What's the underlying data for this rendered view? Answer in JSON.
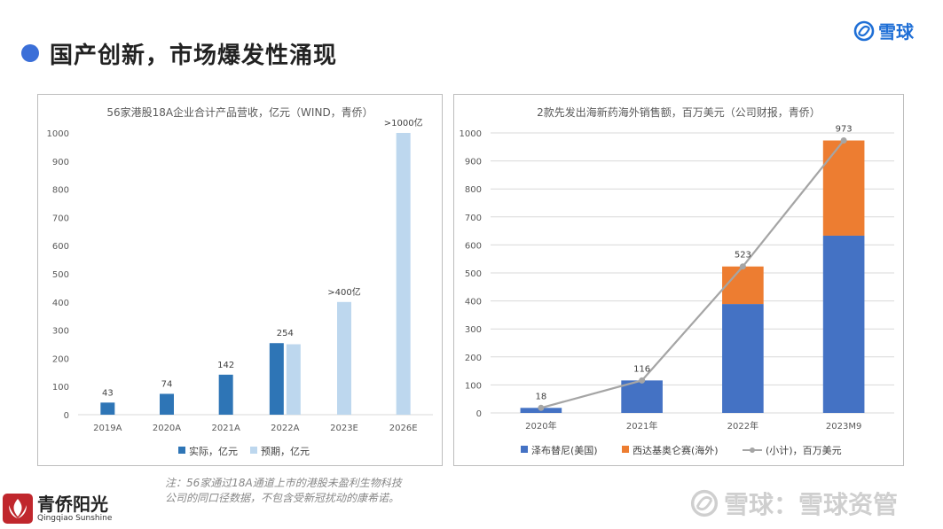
{
  "page": {
    "title": "国产创新，市场爆发性涌现",
    "brand_top": "雪球",
    "note_line1": "注：56家通过18A通道上市的港股未盈利生物科技",
    "note_line2": "公司的同口径数据，不包含受新冠扰动的康希诺。",
    "brand_bottom_cn": "青侨阳光",
    "brand_bottom_en": "Qingqiao Sunshine",
    "watermark": "雪球：雪球资管",
    "accent_color": "#3b6fd8"
  },
  "chart_data": [
    {
      "type": "bar",
      "title": "56家港股18A企业合计产品营收，亿元（WIND，青侨）",
      "categories": [
        "2019A",
        "2020A",
        "2021A",
        "2022A",
        "2023E",
        "2026E"
      ],
      "ylim": [
        0,
        1000
      ],
      "yticks": [
        0,
        100,
        200,
        300,
        400,
        500,
        600,
        700,
        800,
        900,
        1000
      ],
      "grid": false,
      "legend_position": "bottom",
      "series": [
        {
          "name": "实际，亿元",
          "color": "#2e75b6",
          "values": [
            43,
            74,
            142,
            254,
            null,
            null
          ]
        },
        {
          "name": "预期，亿元",
          "color": "#bdd7ee",
          "values": [
            null,
            null,
            null,
            250,
            400,
            1000
          ]
        }
      ],
      "data_labels": [
        "43",
        "74",
        "142",
        "254",
        ">400亿",
        ">1000亿"
      ]
    },
    {
      "type": "bar",
      "stacked": true,
      "title": "2款先发出海新药海外销售额，百万美元（公司财报，青侨）",
      "categories": [
        "2020年",
        "2021年",
        "2022年",
        "2023M9"
      ],
      "ylim": [
        0,
        1000
      ],
      "yticks": [
        0,
        100,
        200,
        300,
        400,
        500,
        600,
        700,
        800,
        900,
        1000
      ],
      "grid": true,
      "legend_position": "bottom",
      "series": [
        {
          "name": "泽布替尼(美国)",
          "color": "#4472c4",
          "values": [
            18,
            116,
            389,
            633
          ]
        },
        {
          "name": "西达基奥仑赛(海外)",
          "color": "#ed7d31",
          "values": [
            0,
            0,
            134,
            340
          ]
        },
        {
          "name": "(小计)，百万美元",
          "color": "#a5a5a5",
          "type": "line",
          "values": [
            18,
            116,
            523,
            973
          ]
        }
      ],
      "data_labels": [
        "18",
        "116",
        "523",
        "973"
      ]
    }
  ]
}
